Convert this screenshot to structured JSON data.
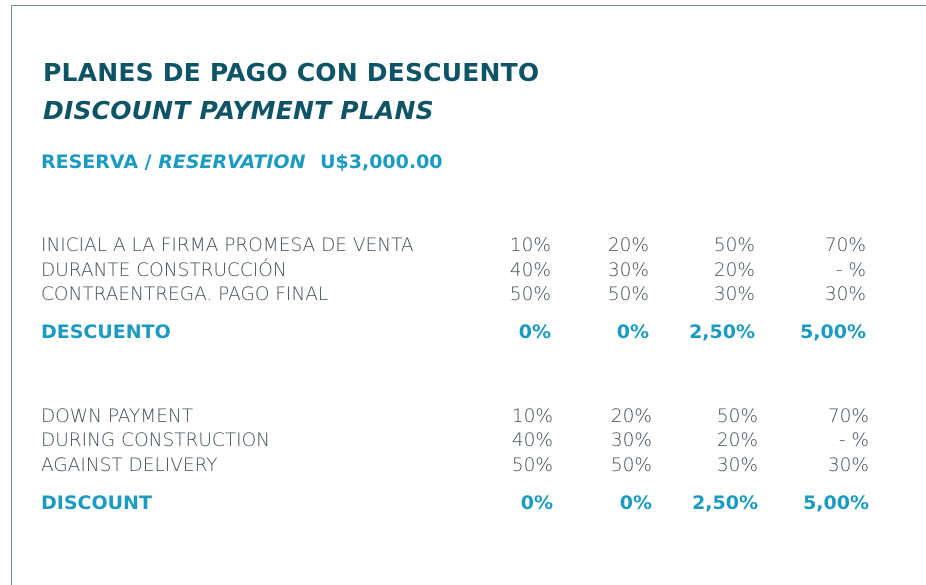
{
  "title_es": "PLANES DE PAGO CON DESCUENTO",
  "title_en": "DISCOUNT PAYMENT PLANS",
  "reserva": {
    "label_es": "RESERVA /",
    "label_en": "RESERVATION",
    "amount": "U$3,000.00"
  },
  "plans_es": {
    "rows": [
      {
        "label": "INICIAL A LA FIRMA PROMESA DE VENTA",
        "values": [
          "10%",
          "20%",
          "50%",
          "70%"
        ]
      },
      {
        "label": "DURANTE CONSTRUCCIÓN",
        "values": [
          "40%",
          "30%",
          "20%",
          "-   %"
        ]
      },
      {
        "label": "CONTRAENTREGA. PAGO FINAL",
        "values": [
          "50%",
          "50%",
          "30%",
          "30%"
        ]
      }
    ],
    "discount": {
      "label": "DESCUENTO",
      "values": [
        "0%",
        "0%",
        "2,50%",
        "5,00%"
      ]
    }
  },
  "plans_en": {
    "rows": [
      {
        "label": "DOWN PAYMENT",
        "values": [
          "10%",
          "20%",
          "50%",
          "70%"
        ]
      },
      {
        "label": "DURING CONSTRUCTION",
        "values": [
          "40%",
          "30%",
          "20%",
          "-   %"
        ]
      },
      {
        "label": "AGAINST DELIVERY",
        "values": [
          "50%",
          "50%",
          "30%",
          "30%"
        ]
      }
    ],
    "discount": {
      "label": "DISCOUNT",
      "values": [
        "0%",
        "0%",
        "2,50%",
        "5,00%"
      ]
    }
  },
  "colors": {
    "title": "#0f5466",
    "accent": "#1b9bc1",
    "body_text": "#3f5058",
    "frame": "#6f8fa0"
  }
}
